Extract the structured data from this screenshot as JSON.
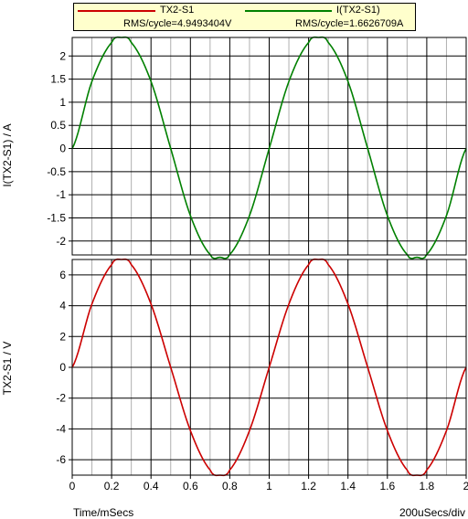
{
  "legend": {
    "voltage_name": "TX2-S1",
    "voltage_rms": "RMS/cycle=4.9493404V",
    "current_name": "I(TX2-S1)",
    "current_rms": "RMS/cycle=1.6626709A"
  },
  "footer": {
    "xlabel": "Time/mSecs",
    "scale": "200uSecs/div"
  },
  "chart_data": [
    {
      "type": "line",
      "title": "",
      "xlabel": "",
      "ylabel": "I(TX2-S1) / A",
      "xlim": [
        0,
        2
      ],
      "ylim": [
        -2.3,
        2.4
      ],
      "yticks": [
        "-2",
        "-1.5",
        "-1",
        "-0.5",
        "0",
        "0.5",
        "1",
        "1.5",
        "2"
      ],
      "grid": true,
      "series": [
        {
          "name": "I(TX2-S1)",
          "color": "#008000",
          "x": [
            0,
            0.1,
            0.2,
            0.25,
            0.3,
            0.4,
            0.5,
            0.6,
            0.7,
            0.75,
            0.8,
            0.9,
            1.0,
            1.1,
            1.2,
            1.25,
            1.3,
            1.4,
            1.5,
            1.6,
            1.7,
            1.75,
            1.8,
            1.9,
            2.0
          ],
          "y": [
            0,
            1.45,
            2.29,
            2.4,
            2.29,
            1.45,
            0,
            -1.45,
            -2.29,
            -2.35,
            -2.29,
            -1.45,
            0,
            1.45,
            2.29,
            2.4,
            2.29,
            1.45,
            0,
            -1.45,
            -2.29,
            -2.35,
            -2.29,
            -1.45,
            0
          ]
        }
      ]
    },
    {
      "type": "line",
      "title": "",
      "xlabel": "Time/mSecs",
      "ylabel": "TX2-S1 / V",
      "xlim": [
        0,
        2
      ],
      "ylim": [
        -7,
        7
      ],
      "xticks": [
        "0",
        "0.2",
        "0.4",
        "0.6",
        "0.8",
        "1",
        "1.2",
        "1.4",
        "1.6",
        "1.8",
        "2"
      ],
      "yticks": [
        "-6",
        "-4",
        "-2",
        "0",
        "2",
        "4",
        "6"
      ],
      "grid": true,
      "series": [
        {
          "name": "TX2-S1",
          "color": "#cc0000",
          "x": [
            0,
            0.1,
            0.2,
            0.25,
            0.3,
            0.4,
            0.5,
            0.6,
            0.7,
            0.75,
            0.8,
            0.9,
            1.0,
            1.1,
            1.2,
            1.25,
            1.3,
            1.4,
            1.5,
            1.6,
            1.7,
            1.75,
            1.8,
            1.9,
            2.0
          ],
          "y": [
            0,
            4.11,
            6.66,
            7.0,
            6.66,
            4.11,
            0,
            -4.11,
            -6.66,
            -7.0,
            -6.66,
            -4.11,
            0,
            4.11,
            6.66,
            7.0,
            6.66,
            4.11,
            0,
            -4.11,
            -6.66,
            -7.0,
            -6.66,
            -4.11,
            0
          ]
        }
      ]
    }
  ]
}
